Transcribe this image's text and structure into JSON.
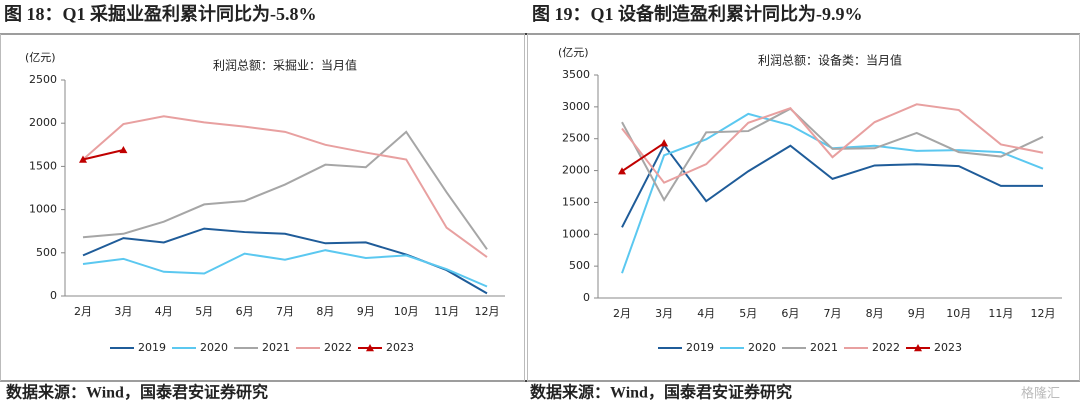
{
  "chart_data": [
    {
      "type": "line",
      "title": "图 18：Q1 采掘业盈利累计同比为-5.8%",
      "subtitle": "利润总额：采掘业：当月值",
      "y_label": "(亿元)",
      "categories": [
        "2月",
        "3月",
        "4月",
        "5月",
        "6月",
        "7月",
        "8月",
        "9月",
        "10月",
        "11月",
        "12月"
      ],
      "ylim": [
        0,
        2500
      ],
      "yticks": [
        0,
        500,
        1000,
        1500,
        2000,
        2500
      ],
      "series": [
        {
          "name": "2019",
          "color": "#1f5c99",
          "values": [
            470,
            670,
            620,
            780,
            740,
            720,
            610,
            620,
            480,
            300,
            30
          ]
        },
        {
          "name": "2020",
          "color": "#5bc8f0",
          "values": [
            370,
            430,
            280,
            260,
            490,
            420,
            530,
            440,
            470,
            310,
            110
          ]
        },
        {
          "name": "2021",
          "color": "#a6a6a6",
          "values": [
            680,
            720,
            860,
            1060,
            1100,
            1290,
            1520,
            1490,
            1900,
            1200,
            540
          ]
        },
        {
          "name": "2022",
          "color": "#e8a0a0",
          "values": [
            1580,
            1990,
            2080,
            2010,
            1960,
            1900,
            1750,
            1660,
            1580,
            790,
            450
          ]
        },
        {
          "name": "2023",
          "color": "#c00000",
          "marker": "triangle",
          "values": [
            1580,
            1690,
            null,
            null,
            null,
            null,
            null,
            null,
            null,
            null,
            null
          ]
        }
      ],
      "source": "数据来源：Wind，国泰君安证券研究"
    },
    {
      "type": "line",
      "title": "图 19：Q1 设备制造盈利累计同比为-9.9%",
      "subtitle": "利润总额：设备类：当月值",
      "y_label": "(亿元)",
      "categories": [
        "2月",
        "3月",
        "4月",
        "5月",
        "6月",
        "7月",
        "8月",
        "9月",
        "10月",
        "11月",
        "12月"
      ],
      "ylim": [
        0,
        3500
      ],
      "yticks": [
        0,
        500,
        1000,
        1500,
        2000,
        2500,
        3000,
        3500
      ],
      "series": [
        {
          "name": "2019",
          "color": "#1f5c99",
          "values": [
            1110,
            2400,
            1520,
            1990,
            2390,
            1870,
            2080,
            2100,
            2070,
            1760,
            1760
          ]
        },
        {
          "name": "2020",
          "color": "#5bc8f0",
          "values": [
            390,
            2240,
            2490,
            2890,
            2710,
            2350,
            2390,
            2310,
            2320,
            2290,
            2030
          ]
        },
        {
          "name": "2021",
          "color": "#a6a6a6",
          "values": [
            2760,
            1540,
            2600,
            2620,
            2970,
            2340,
            2350,
            2590,
            2290,
            2220,
            2530
          ]
        },
        {
          "name": "2022",
          "color": "#e8a0a0",
          "values": [
            2660,
            1810,
            2100,
            2750,
            2980,
            2210,
            2760,
            3040,
            2950,
            2410,
            2280
          ]
        },
        {
          "name": "2023",
          "color": "#c00000",
          "marker": "triangle",
          "values": [
            1990,
            2430,
            null,
            null,
            null,
            null,
            null,
            null,
            null,
            null,
            null
          ]
        }
      ],
      "source": "数据来源：Wind，国泰君安证券研究"
    }
  ],
  "watermark": "格隆汇"
}
